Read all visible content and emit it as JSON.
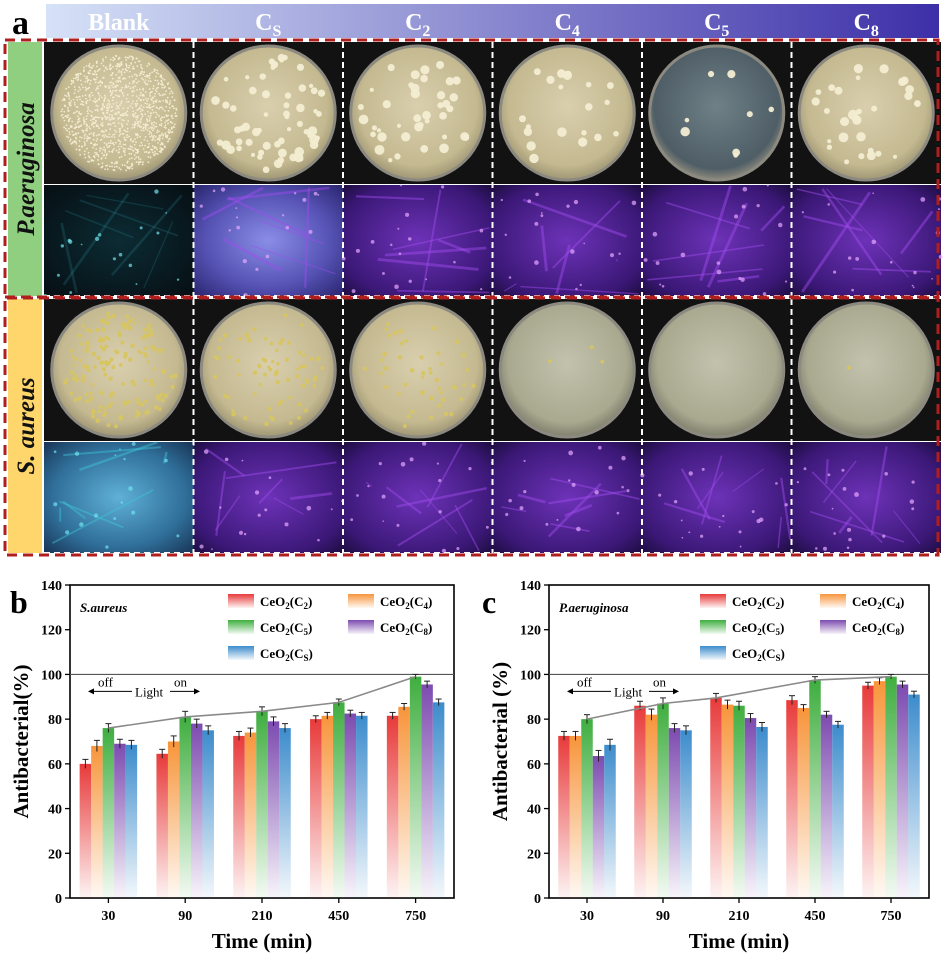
{
  "panel_a": {
    "label": "a",
    "columns": [
      {
        "main": "Blank",
        "sub": ""
      },
      {
        "main": "C",
        "sub": "S"
      },
      {
        "main": "C",
        "sub": "2"
      },
      {
        "main": "C",
        "sub": "4"
      },
      {
        "main": "C",
        "sub": "5"
      },
      {
        "main": "C",
        "sub": "8"
      }
    ],
    "rows": [
      "P.aeruginosa",
      "S. aureus"
    ],
    "colony_counts_paeruginosa": [
      1200,
      60,
      40,
      20,
      8,
      30
    ],
    "colony_counts_saureus": [
      150,
      70,
      45,
      3,
      0,
      1
    ],
    "colors": {
      "header_start": "#d6e2f7",
      "header_end": "#3d2fa8",
      "row_top_label_bg": "#8fcf7f",
      "row_bottom_label_bg": "#ffd66b",
      "frame": "#b01e1e",
      "blank_fluor": "#3ec6d6",
      "treated_fluor": "#a24cf0"
    }
  },
  "chart_data": [
    {
      "type": "bar",
      "panel_label": "b",
      "title": "S.aureus",
      "xlabel": "Time (min)",
      "ylabel": "Antibacterial(%)",
      "categories": [
        "30",
        "90",
        "210",
        "450",
        "750"
      ],
      "ylim": [
        0,
        140
      ],
      "yticks": [
        0,
        20,
        40,
        60,
        80,
        100,
        120,
        140
      ],
      "reference_line": 100,
      "annotation": {
        "left": "off",
        "center": "Light",
        "right": "on"
      },
      "legend_position": "top-right",
      "series": [
        {
          "name": "CeO2(C2)",
          "base": "CeO",
          "sub1": "2",
          "label": "C",
          "sub2": "2",
          "color": "#e83a3a",
          "values": [
            60,
            64.5,
            72.5,
            80,
            81.5
          ],
          "errors": [
            2,
            2,
            2,
            1.5,
            1.5
          ]
        },
        {
          "name": "CeO2(C4)",
          "base": "CeO",
          "sub1": "2",
          "label": "C",
          "sub2": "4",
          "color": "#f7953b",
          "values": [
            68,
            70,
            74,
            81.5,
            85.5
          ],
          "errors": [
            2.5,
            2.5,
            2,
            1.5,
            1.5
          ]
        },
        {
          "name": "CeO2(C5)",
          "base": "CeO",
          "sub1": "2",
          "label": "C",
          "sub2": "5",
          "color": "#3fae3f",
          "values": [
            76,
            81,
            83.5,
            87.5,
            99
          ],
          "errors": [
            2,
            2.5,
            2,
            1.5,
            1
          ]
        },
        {
          "name": "CeO2(C8)",
          "base": "CeO",
          "sub1": "2",
          "label": "C",
          "sub2": "8",
          "color": "#7d4bb0",
          "values": [
            69,
            78,
            79,
            82.5,
            95.5
          ],
          "errors": [
            2,
            2,
            2,
            1.5,
            1.5
          ]
        },
        {
          "name": "CeO2(CS)",
          "base": "CeO",
          "sub1": "2",
          "label": "C",
          "sub2": "S",
          "color": "#3c8ccc",
          "values": [
            68.5,
            75,
            76,
            81.5,
            87.5
          ],
          "errors": [
            2,
            2,
            2,
            1.5,
            1.5
          ]
        }
      ]
    },
    {
      "type": "bar",
      "panel_label": "c",
      "title": "P.aeruginosa",
      "xlabel": "Time (min)",
      "ylabel": "Antibacterial (%)",
      "categories": [
        "30",
        "90",
        "210",
        "450",
        "750"
      ],
      "ylim": [
        0,
        140
      ],
      "yticks": [
        0,
        20,
        40,
        60,
        80,
        100,
        120,
        140
      ],
      "reference_line": 100,
      "annotation": {
        "left": "off",
        "center": "Light",
        "right": "on"
      },
      "legend_position": "top-right",
      "series": [
        {
          "name": "CeO2(C2)",
          "base": "CeO",
          "sub1": "2",
          "label": "C",
          "sub2": "2",
          "color": "#e83a3a",
          "values": [
            72.5,
            86,
            89.5,
            88.5,
            95
          ],
          "errors": [
            2,
            2,
            2,
            2,
            1.5
          ]
        },
        {
          "name": "CeO2(C4)",
          "base": "CeO",
          "sub1": "2",
          "label": "C",
          "sub2": "4",
          "color": "#f7953b",
          "values": [
            72.5,
            82,
            86.5,
            85,
            97
          ],
          "errors": [
            2,
            2.5,
            2,
            1.5,
            1.5
          ]
        },
        {
          "name": "CeO2(C5)",
          "base": "CeO",
          "sub1": "2",
          "label": "C",
          "sub2": "5",
          "color": "#3fae3f",
          "values": [
            80,
            87,
            86,
            97.5,
            99
          ],
          "errors": [
            2,
            2.5,
            2,
            1.5,
            1
          ]
        },
        {
          "name": "CeO2(C8)",
          "base": "CeO",
          "sub1": "2",
          "label": "C",
          "sub2": "8",
          "color": "#7d4bb0",
          "values": [
            63.5,
            76,
            80.5,
            82,
            95.5
          ],
          "errors": [
            2.5,
            2,
            2,
            1.5,
            1.5
          ]
        },
        {
          "name": "CeO2(CS)",
          "base": "CeO",
          "sub1": "2",
          "label": "C",
          "sub2": "S",
          "color": "#3c8ccc",
          "values": [
            68.5,
            75,
            76.5,
            77.5,
            91
          ],
          "errors": [
            2.5,
            2,
            2,
            1.5,
            1.5
          ]
        }
      ]
    }
  ]
}
